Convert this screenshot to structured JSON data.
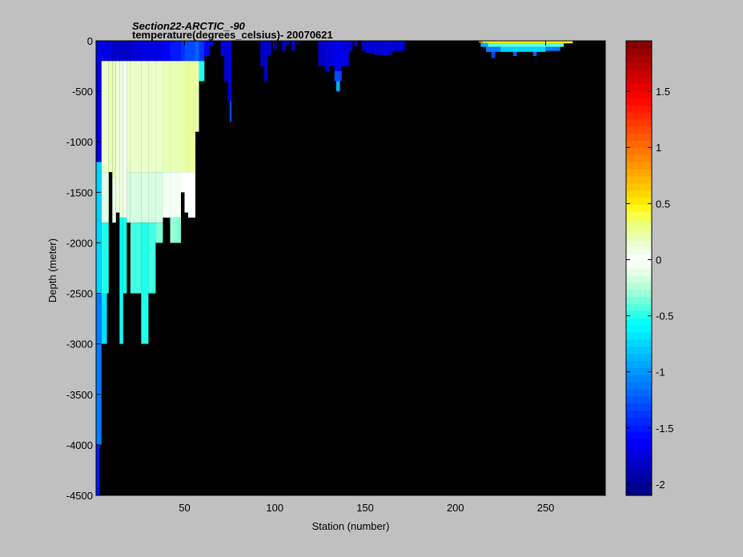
{
  "chart_data": {
    "type": "heatmap",
    "title": "Section22-ARCTIC_-90",
    "subtitle": "temperature(degrees_celsius)- 20070621",
    "xlabel": "Station (number)",
    "ylabel": "Depth (meter)",
    "xlim": [
      1,
      283
    ],
    "ylim": [
      -4500,
      0
    ],
    "xticks": [
      50,
      100,
      150,
      200,
      250
    ],
    "yticks": [
      0,
      -500,
      -1000,
      -1500,
      -2000,
      -2500,
      -3000,
      -3500,
      -4000,
      -4500
    ],
    "background_color": "#000000",
    "colormap": "jet",
    "colorbar": {
      "range": [
        -2.1,
        1.95
      ],
      "ticks": [
        1.5,
        1,
        0.5,
        0,
        -0.5,
        -1,
        -1.5,
        -2
      ]
    },
    "cells": [
      {
        "x": [
          1,
          4
        ],
        "depth": [
          0,
          -1200
        ],
        "value": -1.7
      },
      {
        "x": [
          1,
          4
        ],
        "depth": [
          -1200,
          -2500
        ],
        "value": -0.75
      },
      {
        "x": [
          1,
          4
        ],
        "depth": [
          -2500,
          -4000
        ],
        "value": -1.1
      },
      {
        "x": [
          1,
          3
        ],
        "depth": [
          -4000,
          -4500
        ],
        "value": -1.5
      },
      {
        "x": [
          4,
          8
        ],
        "depth": [
          0,
          -200
        ],
        "value": -1.7
      },
      {
        "x": [
          4,
          8
        ],
        "depth": [
          -200,
          -1300
        ],
        "value": 0.15
      },
      {
        "x": [
          4,
          8
        ],
        "depth": [
          -1300,
          -1800
        ],
        "value": -0.1
      },
      {
        "x": [
          4,
          8
        ],
        "depth": [
          -1800,
          -2500
        ],
        "value": -0.5
      },
      {
        "x": [
          4,
          7
        ],
        "depth": [
          -2500,
          -3000
        ],
        "value": -0.7
      },
      {
        "x": [
          8,
          10
        ],
        "depth": [
          0,
          -200
        ],
        "value": -1.7
      },
      {
        "x": [
          8,
          10
        ],
        "depth": [
          -200,
          -1300
        ],
        "value": 0.2
      },
      {
        "x": [
          10,
          12
        ],
        "depth": [
          0,
          -200
        ],
        "value": -1.8
      },
      {
        "x": [
          10,
          12
        ],
        "depth": [
          -200,
          -1350
        ],
        "value": 0.2
      },
      {
        "x": [
          10,
          12
        ],
        "depth": [
          -1350,
          -1800
        ],
        "value": -0.1
      },
      {
        "x": [
          12,
          14
        ],
        "depth": [
          0,
          -200
        ],
        "value": -1.8
      },
      {
        "x": [
          12,
          14
        ],
        "depth": [
          -200,
          -1700
        ],
        "value": 0.1
      },
      {
        "x": [
          14,
          16
        ],
        "depth": [
          0,
          -200
        ],
        "value": -1.8
      },
      {
        "x": [
          14,
          16
        ],
        "depth": [
          -200,
          -1750
        ],
        "value": 0.1
      },
      {
        "x": [
          14,
          16
        ],
        "depth": [
          -1750,
          -3000
        ],
        "value": -0.55
      },
      {
        "x": [
          16,
          18
        ],
        "depth": [
          0,
          -200
        ],
        "value": -1.8
      },
      {
        "x": [
          16,
          18
        ],
        "depth": [
          -200,
          -1750
        ],
        "value": 0.05
      },
      {
        "x": [
          16,
          18
        ],
        "depth": [
          -1750,
          -2500
        ],
        "value": -0.5
      },
      {
        "x": [
          18,
          20
        ],
        "depth": [
          0,
          -200
        ],
        "value": -1.8
      },
      {
        "x": [
          18,
          20
        ],
        "depth": [
          -200,
          -1300
        ],
        "value": 0.15
      },
      {
        "x": [
          18,
          20
        ],
        "depth": [
          -1300,
          -1800
        ],
        "value": -0.15
      },
      {
        "x": [
          20,
          26
        ],
        "depth": [
          0,
          -200
        ],
        "value": -1.75
      },
      {
        "x": [
          20,
          26
        ],
        "depth": [
          -200,
          -1300
        ],
        "value": 0.15
      },
      {
        "x": [
          20,
          26
        ],
        "depth": [
          -1300,
          -1800
        ],
        "value": -0.15
      },
      {
        "x": [
          20,
          26
        ],
        "depth": [
          -1800,
          -2500
        ],
        "value": -0.45
      },
      {
        "x": [
          26,
          30
        ],
        "depth": [
          0,
          -200
        ],
        "value": -1.7
      },
      {
        "x": [
          26,
          30
        ],
        "depth": [
          -200,
          -1300
        ],
        "value": 0.15
      },
      {
        "x": [
          26,
          30
        ],
        "depth": [
          -1300,
          -1800
        ],
        "value": -0.15
      },
      {
        "x": [
          26,
          30
        ],
        "depth": [
          -1800,
          -3000
        ],
        "value": -0.5
      },
      {
        "x": [
          30,
          34
        ],
        "depth": [
          0,
          -200
        ],
        "value": -1.7
      },
      {
        "x": [
          30,
          34
        ],
        "depth": [
          -200,
          -1300
        ],
        "value": 0.15
      },
      {
        "x": [
          30,
          34
        ],
        "depth": [
          -1300,
          -1800
        ],
        "value": -0.15
      },
      {
        "x": [
          30,
          34
        ],
        "depth": [
          -1800,
          -2500
        ],
        "value": -0.45
      },
      {
        "x": [
          34,
          38
        ],
        "depth": [
          0,
          -200
        ],
        "value": -1.7
      },
      {
        "x": [
          34,
          38
        ],
        "depth": [
          -200,
          -1300
        ],
        "value": 0.15
      },
      {
        "x": [
          34,
          38
        ],
        "depth": [
          -1300,
          -1800
        ],
        "value": -0.15
      },
      {
        "x": [
          34,
          38
        ],
        "depth": [
          -1800,
          -2000
        ],
        "value": -0.35
      },
      {
        "x": [
          38,
          42
        ],
        "depth": [
          0,
          -200
        ],
        "value": -1.6
      },
      {
        "x": [
          38,
          42
        ],
        "depth": [
          -200,
          -1300
        ],
        "value": 0.2
      },
      {
        "x": [
          38,
          42
        ],
        "depth": [
          -1300,
          -1750
        ],
        "value": -0.05
      },
      {
        "x": [
          42,
          46
        ],
        "depth": [
          0,
          -200
        ],
        "value": -1.5
      },
      {
        "x": [
          42,
          46
        ],
        "depth": [
          -200,
          -1300
        ],
        "value": 0.2
      },
      {
        "x": [
          42,
          46
        ],
        "depth": [
          -1300,
          -1750
        ],
        "value": -0.05
      },
      {
        "x": [
          42,
          46
        ],
        "depth": [
          -1750,
          -2000
        ],
        "value": -0.3
      },
      {
        "x": [
          46,
          48
        ],
        "depth": [
          0,
          -200
        ],
        "value": -1.5
      },
      {
        "x": [
          46,
          48
        ],
        "depth": [
          -200,
          -1300
        ],
        "value": 0.2
      },
      {
        "x": [
          46,
          48
        ],
        "depth": [
          -1300,
          -1750
        ],
        "value": -0.05
      },
      {
        "x": [
          46,
          48
        ],
        "depth": [
          -1750,
          -2000
        ],
        "value": -0.35
      },
      {
        "x": [
          48,
          50
        ],
        "depth": [
          0,
          -200
        ],
        "value": -1.4
      },
      {
        "x": [
          48,
          50
        ],
        "depth": [
          -200,
          -1300
        ],
        "value": 0.2
      },
      {
        "x": [
          48,
          50
        ],
        "depth": [
          -1300,
          -1500
        ],
        "value": 0.0
      },
      {
        "x": [
          50,
          52
        ],
        "depth": [
          0,
          -200
        ],
        "value": -1.3
      },
      {
        "x": [
          50,
          52
        ],
        "depth": [
          -200,
          -1300
        ],
        "value": 0.25
      },
      {
        "x": [
          50,
          52
        ],
        "depth": [
          -1300,
          -1700
        ],
        "value": 0.0
      },
      {
        "x": [
          52,
          56
        ],
        "depth": [
          0,
          -200
        ],
        "value": -1.3
      },
      {
        "x": [
          52,
          56
        ],
        "depth": [
          -200,
          -1300
        ],
        "value": 0.25
      },
      {
        "x": [
          52,
          56
        ],
        "depth": [
          -1300,
          -1750
        ],
        "value": 0.0
      },
      {
        "x": [
          56,
          58
        ],
        "depth": [
          0,
          -200
        ],
        "value": -1.2
      },
      {
        "x": [
          56,
          58
        ],
        "depth": [
          -200,
          -900
        ],
        "value": 0.2
      },
      {
        "x": [
          58,
          61
        ],
        "depth": [
          0,
          -200
        ],
        "value": -1.4
      },
      {
        "x": [
          58,
          61
        ],
        "depth": [
          -200,
          -400
        ],
        "value": -0.5
      },
      {
        "x": [
          61,
          64
        ],
        "depth": [
          0,
          -150
        ],
        "value": -1.6
      },
      {
        "x": [
          64,
          66
        ],
        "depth": [
          0,
          -50
        ],
        "value": -1.7
      },
      {
        "x": [
          70,
          72
        ],
        "depth": [
          0,
          -150
        ],
        "value": -1.75
      },
      {
        "x": [
          72,
          74
        ],
        "depth": [
          0,
          -400
        ],
        "value": -1.75
      },
      {
        "x": [
          74,
          76
        ],
        "depth": [
          0,
          -600
        ],
        "value": -1.75
      },
      {
        "x": [
          75,
          76
        ],
        "depth": [
          -600,
          -800
        ],
        "value": -1.3
      },
      {
        "x": [
          92,
          94
        ],
        "depth": [
          0,
          -250
        ],
        "value": -1.8
      },
      {
        "x": [
          94,
          96
        ],
        "depth": [
          0,
          -400
        ],
        "value": -1.8
      },
      {
        "x": [
          96,
          98
        ],
        "depth": [
          0,
          -150
        ],
        "value": -1.8
      },
      {
        "x": [
          99,
          101
        ],
        "depth": [
          0,
          -80
        ],
        "value": -1.8
      },
      {
        "x": [
          104,
          106
        ],
        "depth": [
          0,
          -100
        ],
        "value": -1.8
      },
      {
        "x": [
          106,
          108
        ],
        "depth": [
          0,
          -40
        ],
        "value": -1.8
      },
      {
        "x": [
          109,
          111
        ],
        "depth": [
          0,
          -100
        ],
        "value": -1.8
      },
      {
        "x": [
          112,
          113
        ],
        "depth": [
          0,
          -40
        ],
        "value": -1.8
      },
      {
        "x": [
          124,
          128
        ],
        "depth": [
          0,
          -250
        ],
        "value": -1.8
      },
      {
        "x": [
          128,
          130
        ],
        "depth": [
          0,
          -300
        ],
        "value": -1.75
      },
      {
        "x": [
          130,
          133
        ],
        "depth": [
          0,
          -250
        ],
        "value": -1.7
      },
      {
        "x": [
          133,
          137
        ],
        "depth": [
          0,
          -300
        ],
        "value": -1.65
      },
      {
        "x": [
          133,
          137
        ],
        "depth": [
          -300,
          -400
        ],
        "value": -1.3
      },
      {
        "x": [
          134,
          136
        ],
        "depth": [
          -400,
          -500
        ],
        "value": -0.9
      },
      {
        "x": [
          137,
          141
        ],
        "depth": [
          0,
          -250
        ],
        "value": -1.7
      },
      {
        "x": [
          141,
          143
        ],
        "depth": [
          0,
          -100
        ],
        "value": -1.8
      },
      {
        "x": [
          144,
          146
        ],
        "depth": [
          0,
          -50
        ],
        "value": -1.8
      },
      {
        "x": [
          148,
          150
        ],
        "depth": [
          0,
          -100
        ],
        "value": -1.8
      },
      {
        "x": [
          150,
          155
        ],
        "depth": [
          0,
          -120
        ],
        "value": -1.75
      },
      {
        "x": [
          155,
          160
        ],
        "depth": [
          0,
          -140
        ],
        "value": -1.75
      },
      {
        "x": [
          160,
          165
        ],
        "depth": [
          0,
          -140
        ],
        "value": -1.75
      },
      {
        "x": [
          165,
          169
        ],
        "depth": [
          0,
          -100
        ],
        "value": -1.75
      },
      {
        "x": [
          169,
          172
        ],
        "depth": [
          0,
          -100
        ],
        "value": -1.75
      },
      {
        "x": [
          213,
          215
        ],
        "depth": [
          0,
          -20
        ],
        "value": 1.0
      },
      {
        "x": [
          215,
          265
        ],
        "depth": [
          0,
          -25
        ],
        "value": 0.5
      },
      {
        "x": [
          214,
          218
        ],
        "depth": [
          -20,
          -60
        ],
        "value": -0.9
      },
      {
        "x": [
          218,
          260
        ],
        "depth": [
          -25,
          -60
        ],
        "value": -0.4
      },
      {
        "x": [
          217,
          225
        ],
        "depth": [
          -60,
          -110
        ],
        "value": -1.1
      },
      {
        "x": [
          225,
          250
        ],
        "depth": [
          -60,
          -110
        ],
        "value": -0.75
      },
      {
        "x": [
          250,
          258
        ],
        "depth": [
          -60,
          -100
        ],
        "value": -1.1
      },
      {
        "x": [
          220,
          222
        ],
        "depth": [
          -110,
          -170
        ],
        "value": -1.3
      },
      {
        "x": [
          232,
          234
        ],
        "depth": [
          -110,
          -150
        ],
        "value": -1.2
      },
      {
        "x": [
          243,
          245
        ],
        "depth": [
          -110,
          -150
        ],
        "value": -1.2
      }
    ]
  }
}
